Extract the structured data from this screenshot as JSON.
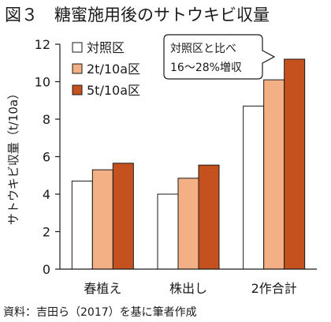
{
  "chart_data": {
    "type": "bar",
    "title": "図３　糖蜜施用後のサトウキビ収量",
    "ylabel": "サトウキビ収量（t/10a）",
    "xlabel": "",
    "ylim": [
      0,
      12
    ],
    "yticks": [
      0,
      2,
      4,
      6,
      8,
      10,
      12
    ],
    "categories": [
      "春植え",
      "株出し",
      "2作合計"
    ],
    "series": [
      {
        "name": "対照区",
        "values": [
          4.7,
          4.0,
          8.7
        ],
        "color": "#ffffff"
      },
      {
        "name": "2t/10a区",
        "values": [
          5.3,
          4.85,
          10.1
        ],
        "color": "#f3b085"
      },
      {
        "name": "5t/10a区",
        "values": [
          5.65,
          5.55,
          11.2
        ],
        "color": "#c4511e"
      }
    ],
    "legend_position": "top-left",
    "grid": false,
    "annotation": {
      "line1": "対照区と比べ",
      "line2": "16～28%増収"
    },
    "source": "資料：吉田ら（2017）を基に筆者作成"
  }
}
